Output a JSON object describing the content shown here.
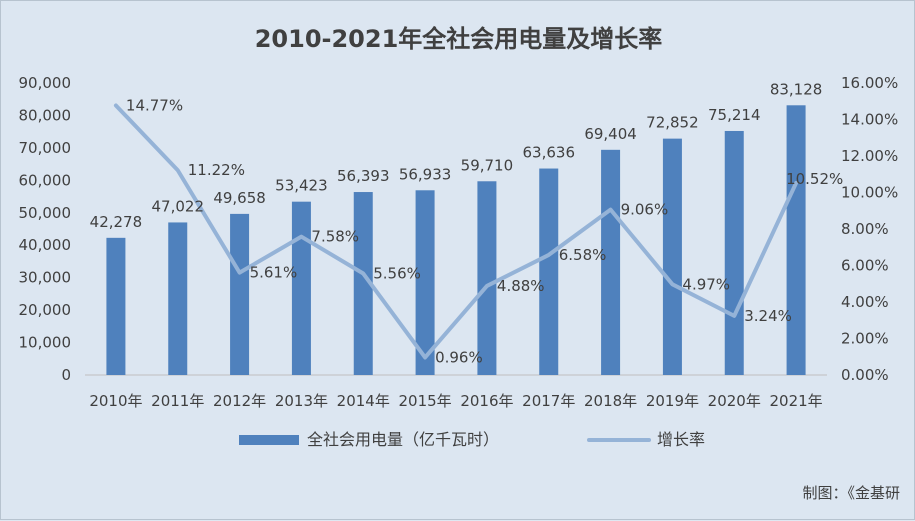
{
  "chart_data": {
    "type": "bar",
    "title": "2010-2021年全社会用电量及增长率",
    "categories": [
      "2010年",
      "2011年",
      "2012年",
      "2013年",
      "2014年",
      "2015年",
      "2016年",
      "2017年",
      "2018年",
      "2019年",
      "2020年",
      "2021年"
    ],
    "series": [
      {
        "name": "全社会用电量（亿千瓦时）",
        "type": "bar",
        "axis": "left",
        "color": "#4f81bd",
        "values": [
          42278,
          47022,
          49658,
          53423,
          56393,
          56933,
          59710,
          63636,
          69404,
          72852,
          75214,
          83128
        ],
        "labels": [
          "42,278",
          "47,022",
          "49,658",
          "53,423",
          "56,393",
          "56,933",
          "59,710",
          "63,636",
          "69,404",
          "72,852",
          "75,214",
          "83,128"
        ]
      },
      {
        "name": "增长率",
        "type": "line",
        "axis": "right",
        "color": "#95b3d7",
        "values": [
          14.77,
          11.22,
          5.61,
          7.58,
          5.56,
          0.96,
          4.88,
          6.58,
          9.06,
          4.97,
          3.24,
          10.52
        ],
        "labels": [
          "14.77%",
          "11.22%",
          "5.61%",
          "7.58%",
          "5.56%",
          "0.96%",
          "4.88%",
          "6.58%",
          "9.06%",
          "4.97%",
          "3.24%",
          "10.52%"
        ]
      }
    ],
    "y_left": {
      "min": 0,
      "max": 90000,
      "step": 10000,
      "ticks": [
        "0",
        "10,000",
        "20,000",
        "30,000",
        "40,000",
        "50,000",
        "60,000",
        "70,000",
        "80,000",
        "90,000"
      ]
    },
    "y_right": {
      "min": 0,
      "max": 16,
      "step": 2,
      "ticks": [
        "0.00%",
        "2.00%",
        "4.00%",
        "6.00%",
        "8.00%",
        "10.00%",
        "12.00%",
        "14.00%",
        "16.00%"
      ]
    },
    "grid": false,
    "legend_position": "bottom",
    "source": "制图：《金基研"
  }
}
